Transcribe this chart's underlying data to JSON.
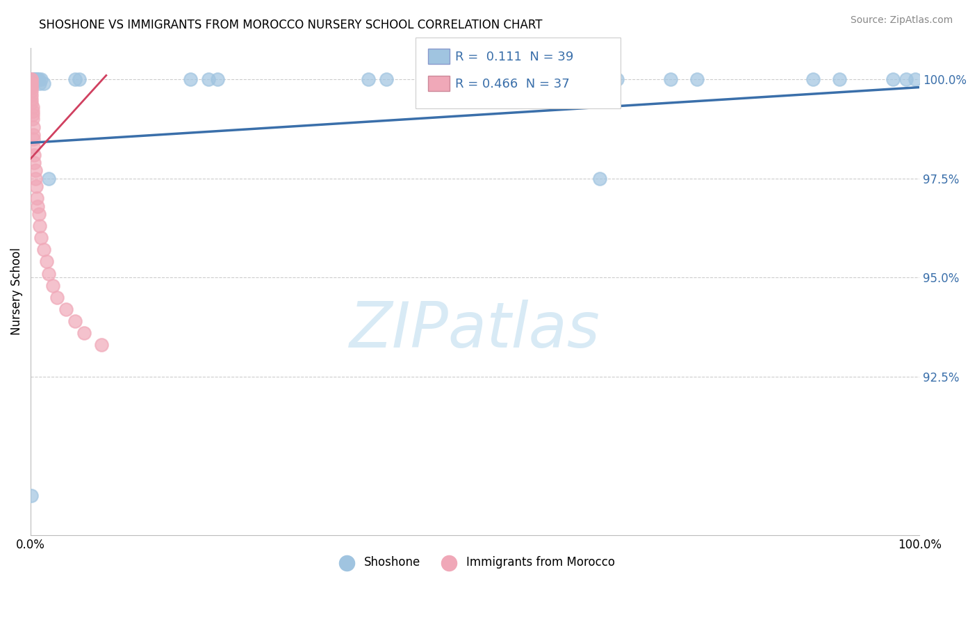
{
  "title": "SHOSHONE VS IMMIGRANTS FROM MOROCCO NURSERY SCHOOL CORRELATION CHART",
  "source": "Source: ZipAtlas.com",
  "ylabel": "Nursery School",
  "legend_blue_r": "0.111",
  "legend_blue_n": "39",
  "legend_pink_r": "0.466",
  "legend_pink_n": "37",
  "blue_color": "#a0c4e0",
  "pink_color": "#f0a8b8",
  "blue_line_color": "#3a6faa",
  "pink_line_color": "#d04060",
  "watermark_color": "#d8eaf5",
  "ytick_vals": [
    0.925,
    0.95,
    0.975,
    1.0
  ],
  "ytick_labels": [
    "92.5%",
    "95.0%",
    "97.5%",
    "100.0%"
  ],
  "ylim_min": 0.885,
  "ylim_max": 1.008,
  "xlim_min": 0.0,
  "xlim_max": 1.0,
  "blue_x": [
    0.001,
    0.002,
    0.002,
    0.003,
    0.003,
    0.003,
    0.003,
    0.004,
    0.004,
    0.004,
    0.005,
    0.005,
    0.005,
    0.006,
    0.006,
    0.007,
    0.008,
    0.009,
    0.01,
    0.012,
    0.015,
    0.02,
    0.05,
    0.055,
    0.18,
    0.2,
    0.21,
    0.38,
    0.4,
    0.64,
    0.66,
    0.72,
    0.75,
    0.88,
    0.91,
    0.97,
    0.985,
    0.995,
    0.001
  ],
  "blue_y": [
    1.0,
    1.0,
    1.0,
    1.0,
    1.0,
    1.0,
    1.0,
    1.0,
    1.0,
    1.0,
    1.0,
    1.0,
    1.0,
    1.0,
    1.0,
    1.0,
    1.0,
    1.0,
    0.999,
    1.0,
    0.999,
    0.975,
    1.0,
    1.0,
    1.0,
    1.0,
    1.0,
    1.0,
    1.0,
    0.975,
    1.0,
    1.0,
    1.0,
    1.0,
    1.0,
    1.0,
    1.0,
    1.0,
    0.895
  ],
  "pink_x": [
    0.001,
    0.001,
    0.001,
    0.001,
    0.001,
    0.001,
    0.001,
    0.001,
    0.001,
    0.001,
    0.002,
    0.002,
    0.002,
    0.002,
    0.003,
    0.003,
    0.003,
    0.003,
    0.004,
    0.004,
    0.005,
    0.005,
    0.006,
    0.007,
    0.008,
    0.009,
    0.01,
    0.012,
    0.015,
    0.018,
    0.02,
    0.025,
    0.03,
    0.04,
    0.05,
    0.06,
    0.08
  ],
  "pink_y": [
    1.0,
    1.0,
    0.999,
    0.999,
    0.998,
    0.998,
    0.997,
    0.996,
    0.995,
    0.994,
    0.993,
    0.992,
    0.991,
    0.99,
    0.988,
    0.986,
    0.985,
    0.983,
    0.981,
    0.979,
    0.977,
    0.975,
    0.973,
    0.97,
    0.968,
    0.966,
    0.963,
    0.96,
    0.957,
    0.954,
    0.951,
    0.948,
    0.945,
    0.942,
    0.939,
    0.936,
    0.933
  ],
  "blue_trend_x": [
    0.0,
    1.0
  ],
  "blue_trend_y": [
    0.984,
    0.998
  ],
  "pink_trend_x": [
    0.0,
    0.085
  ],
  "pink_trend_y": [
    0.98,
    1.001
  ]
}
